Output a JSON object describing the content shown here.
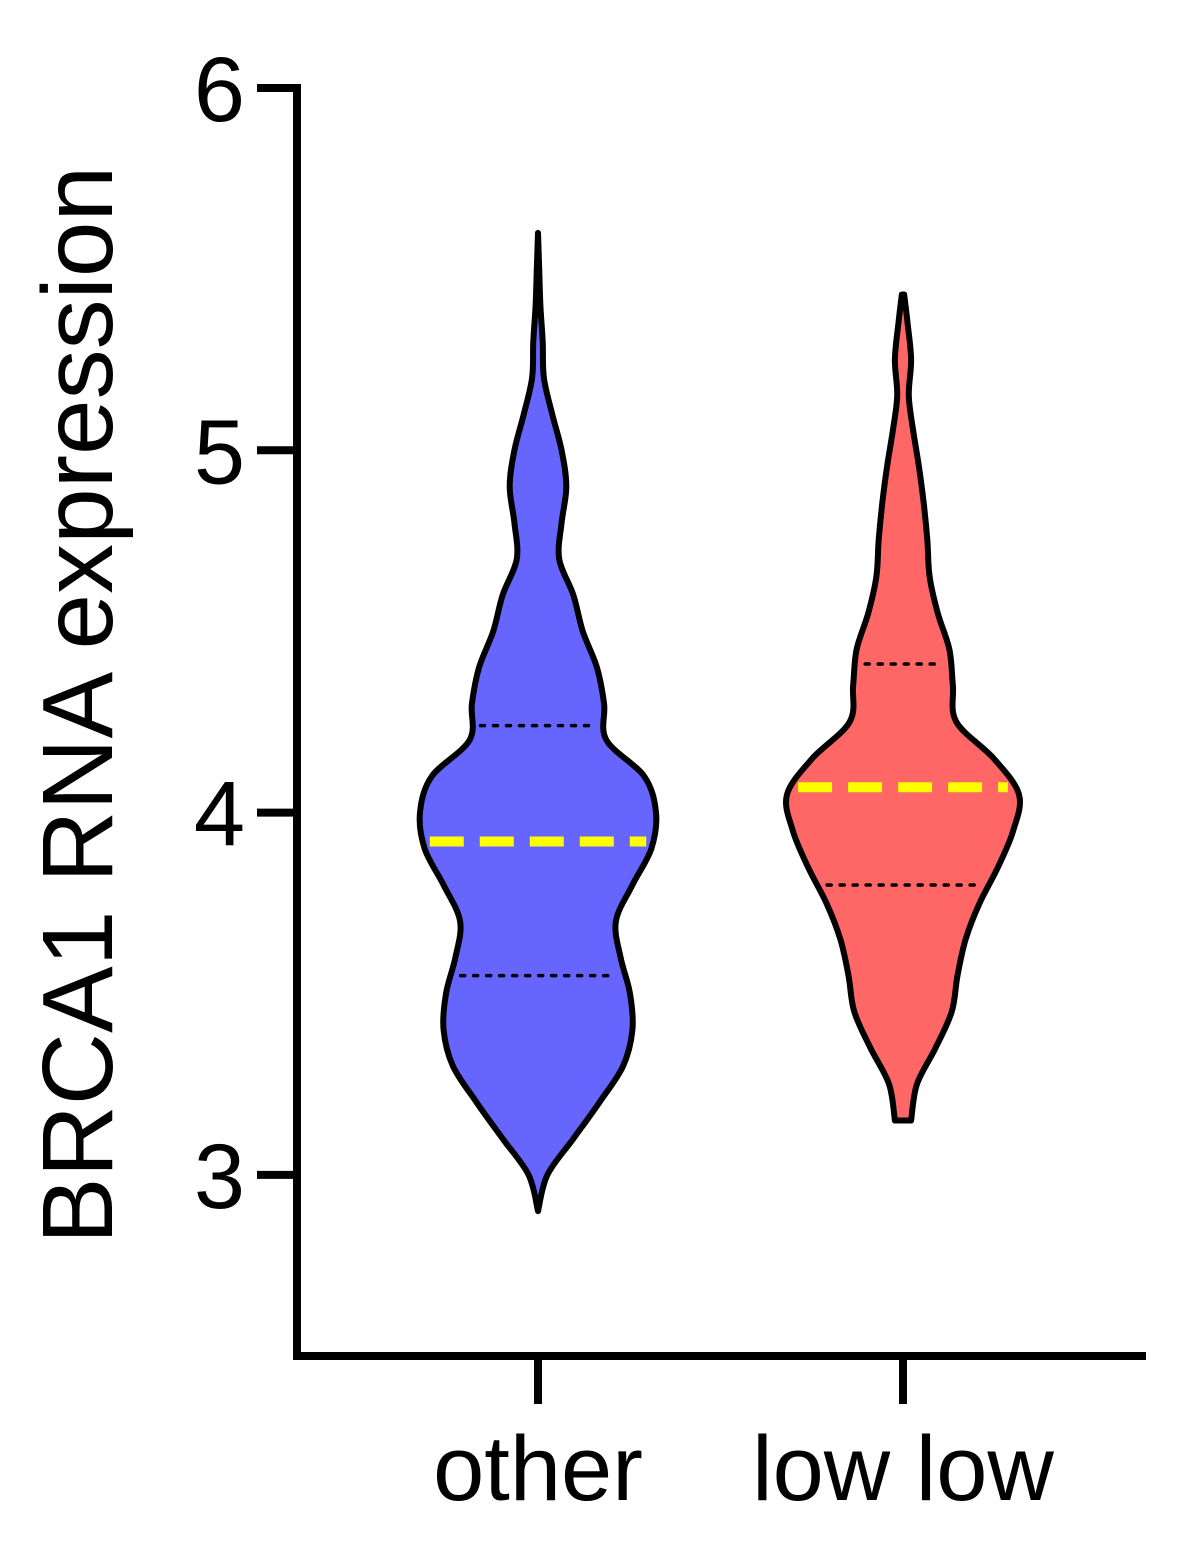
{
  "chart_data": {
    "type": "violin",
    "ylabel": "BRCA1 RNA expression",
    "xlabel": "",
    "ylim": [
      2.5,
      6.0
    ],
    "yticks": [
      3,
      4,
      5,
      6
    ],
    "categories": [
      "other",
      "low low"
    ],
    "series": [
      {
        "category": "other",
        "color": "#6666FF",
        "min": 2.9,
        "max": 5.6,
        "median": 3.92,
        "q1": 3.55,
        "q3": 4.24,
        "density": [
          [
            2.9,
            0.0
          ],
          [
            3.0,
            0.08
          ],
          [
            3.1,
            0.3
          ],
          [
            3.2,
            0.52
          ],
          [
            3.3,
            0.72
          ],
          [
            3.4,
            0.8
          ],
          [
            3.5,
            0.78
          ],
          [
            3.6,
            0.7
          ],
          [
            3.7,
            0.66
          ],
          [
            3.8,
            0.8
          ],
          [
            3.9,
            0.96
          ],
          [
            4.0,
            1.0
          ],
          [
            4.1,
            0.9
          ],
          [
            4.2,
            0.58
          ],
          [
            4.3,
            0.56
          ],
          [
            4.4,
            0.5
          ],
          [
            4.5,
            0.38
          ],
          [
            4.6,
            0.3
          ],
          [
            4.7,
            0.18
          ],
          [
            4.8,
            0.2
          ],
          [
            4.9,
            0.24
          ],
          [
            5.0,
            0.2
          ],
          [
            5.1,
            0.12
          ],
          [
            5.2,
            0.05
          ],
          [
            5.3,
            0.04
          ],
          [
            5.4,
            0.02
          ],
          [
            5.5,
            0.01
          ],
          [
            5.6,
            0.0
          ]
        ]
      },
      {
        "category": "low low",
        "color": "#FF6666",
        "min": 3.15,
        "max": 5.43,
        "median": 4.07,
        "q1": 3.8,
        "q3": 4.41,
        "density": [
          [
            3.15,
            0.07
          ],
          [
            3.25,
            0.12
          ],
          [
            3.35,
            0.28
          ],
          [
            3.45,
            0.42
          ],
          [
            3.55,
            0.47
          ],
          [
            3.65,
            0.54
          ],
          [
            3.75,
            0.66
          ],
          [
            3.85,
            0.82
          ],
          [
            3.95,
            0.95
          ],
          [
            4.05,
            1.0
          ],
          [
            4.15,
            0.78
          ],
          [
            4.25,
            0.46
          ],
          [
            4.35,
            0.43
          ],
          [
            4.45,
            0.4
          ],
          [
            4.55,
            0.3
          ],
          [
            4.65,
            0.23
          ],
          [
            4.75,
            0.21
          ],
          [
            4.85,
            0.18
          ],
          [
            4.95,
            0.14
          ],
          [
            5.05,
            0.09
          ],
          [
            5.15,
            0.05
          ],
          [
            5.25,
            0.07
          ],
          [
            5.35,
            0.04
          ],
          [
            5.43,
            0.01
          ]
        ]
      }
    ],
    "median_line_color": "#FFFF00"
  }
}
